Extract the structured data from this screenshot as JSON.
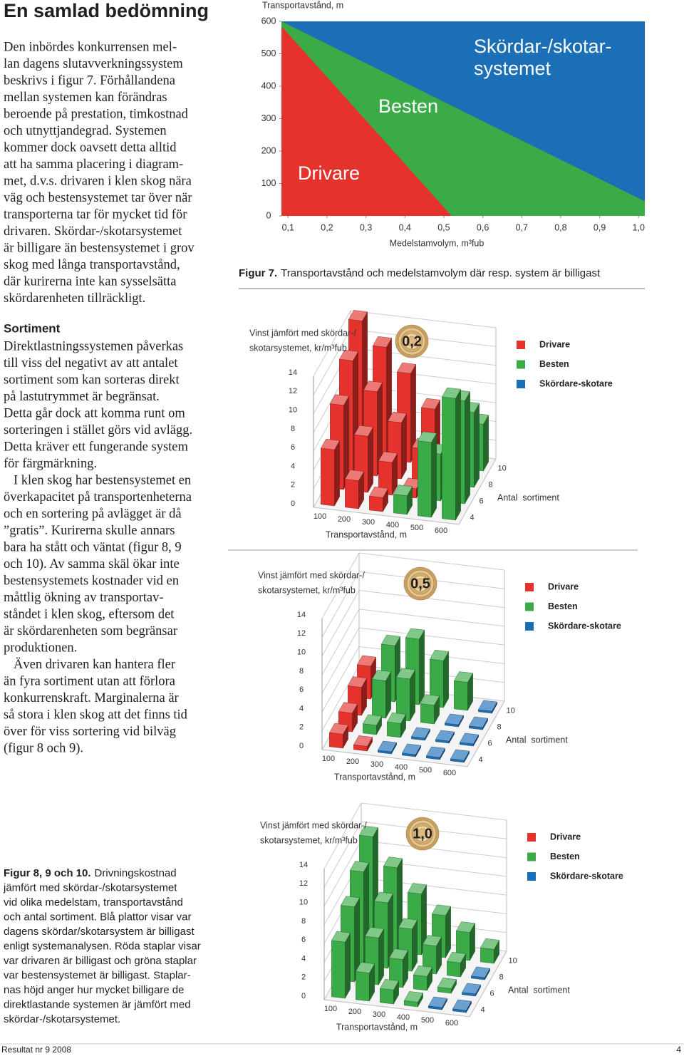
{
  "header": {
    "title": "En samlad bedömning"
  },
  "intro": {
    "lines": [
      "Den inbördes konkurrensen mel-",
      "lan dagens slutavverkningssystem",
      "beskrivs i figur 7. Förhållandena",
      "mellan systemen kan förändras",
      "beroende på prestation, timkostnad",
      "och utnyttjandegrad. Systemen",
      "kommer dock oavsett detta alltid",
      "att ha samma placering i diagram-",
      "met, d.v.s. drivaren i klen skog nära",
      "väg   och bestensystemet tar över när",
      "transporterna tar för mycket tid för",
      "drivaren. Skördar-/skotarsystemet",
      "är billigare än bestensystemet i grov",
      "skog med långa transportavstånd,",
      "där kurirerna inte kan sysselsätta",
      "skördarenheten tillräckligt."
    ]
  },
  "sortiment": {
    "heading": "Sortiment",
    "paragraphs": [
      [
        "Direktlastningssystemen påverkas",
        "till viss del negativt av att antalet",
        "sortiment som kan sorteras direkt",
        "på lastutrymmet är begränsat.",
        "Detta går dock att komma runt om",
        "sorteringen i stället görs vid avlägg.",
        "Detta kräver ett fungerande system",
        "för färgmärkning."
      ],
      [
        "I klen skog har bestensystemet en",
        "överkapacitet på transportenheterna",
        "och en sortering på avlägget är då",
        "”gratis”. Kurirerna skulle annars",
        "bara ha stått och väntat (figur 8, 9",
        "och 10). Av samma skäl ökar inte",
        "bestensystemets kostnader vid en",
        "måttlig ökning av transportav-",
        "ståndet i klen skog, eftersom det",
        "är skördarenheten som begränsar",
        "produktionen."
      ],
      [
        "Även drivaren kan hantera fler",
        "än fyra sortiment utan att förlora",
        "konkurrenskraft. Marginalerna är",
        "så stora i klen skog att det finns tid",
        "över för viss sortering vid bilväg",
        "(figur 8 och 9)."
      ]
    ]
  },
  "figure7_caption": {
    "label": "Figur 7.",
    "text": "Transportavstånd och medelstamvolym där resp. system är billigast"
  },
  "figure8_caption": {
    "label": "Figur 8, 9 och 10.",
    "lines": [
      "Drivningskostnad",
      "jämfört med skördar-/skotarsystemet",
      "vid olika medelstam, transportavstånd",
      "och antal sortiment. Blå plattor visar var",
      "dagens skördar/skotarsystem är billigast",
      "enligt systemanalysen. Röda staplar visar",
      "var drivaren är billigast och gröna staplar",
      "var bestensystemet är billigast. Staplar-",
      "nas höjd anger hur mycket billigare de",
      "direktlastande systemen är jämfört med",
      "skördar-/skotarsystemet."
    ]
  },
  "footer": {
    "publication": "Resultat nr 9 2008",
    "page": "4"
  },
  "chart_data": [
    {
      "type": "area",
      "y_label": "Transportavstånd, m",
      "x_label": "Medelstamvolym, m³fub",
      "xlim": [
        0.083,
        1.016
      ],
      "ylim": [
        0,
        600
      ],
      "xticks": [
        {
          "value": 0.1,
          "label": "0,1"
        },
        {
          "value": 0.2,
          "label": "0,2"
        },
        {
          "value": 0.3,
          "label": "0,3"
        },
        {
          "value": 0.4,
          "label": "0,4"
        },
        {
          "value": 0.5,
          "label": "0,5"
        },
        {
          "value": 0.6,
          "label": "0,6"
        },
        {
          "value": 0.7,
          "label": "0,7"
        },
        {
          "value": 0.8,
          "label": "0,8"
        },
        {
          "value": 0.9,
          "label": "0,9"
        },
        {
          "value": 1.0,
          "label": "1,0"
        }
      ],
      "yticks": [
        0,
        100,
        200,
        300,
        400,
        500,
        600
      ],
      "series": [
        {
          "name": "Drivare",
          "color": "#e5322d",
          "x": [
            0.083,
            0.52
          ],
          "values": [
            585,
            0
          ]
        },
        {
          "name": "Besten",
          "color": "#3aab47",
          "x": [
            0.083,
            1.016
          ],
          "values": [
            600,
            45
          ]
        },
        {
          "name": [
            "Skördar-/skotar-",
            "systemet"
          ],
          "color": "#1b6fb6"
        }
      ]
    },
    {
      "type": "bar3d",
      "y_label": [
        "Vinst jämfört med skördar-/",
        "skotarsystemet, kr/m³fub"
      ],
      "badge": "0,2",
      "x_label": "Transportavstånd, m",
      "x": [
        100,
        200,
        300,
        400,
        500,
        600
      ],
      "depth_label": "Antal  sortiment",
      "depth": [
        4,
        6,
        8,
        10
      ],
      "ylim": [
        0,
        14
      ],
      "yticks": [
        0,
        2,
        4,
        6,
        8,
        10,
        12,
        14
      ],
      "series": [
        {
          "name": "Drivare",
          "color": "#e5322d",
          "values": [
            [
              6,
              3,
              1.5,
              null,
              null,
              null
            ],
            [
              9,
              6,
              3.5,
              1,
              null,
              null
            ],
            [
              12,
              9,
              6,
              3.5,
              null,
              null
            ],
            [
              14.5,
              12,
              9.5,
              6,
              3,
              null
            ]
          ]
        },
        {
          "name": "Besten",
          "color": "#3aab47",
          "values": [
            [
              null,
              null,
              null,
              2,
              8,
              13
            ],
            [
              null,
              null,
              null,
              null,
              5,
              11
            ],
            [
              null,
              null,
              null,
              null,
              2,
              8
            ],
            [
              null,
              null,
              null,
              null,
              null,
              5
            ]
          ]
        },
        {
          "name": "Skördare-skotare",
          "color": "#1b6fb6",
          "values": [
            [
              null,
              null,
              null,
              null,
              null,
              null
            ],
            [
              null,
              null,
              null,
              null,
              null,
              null
            ],
            [
              null,
              null,
              null,
              null,
              null,
              null
            ],
            [
              null,
              null,
              null,
              null,
              null,
              null
            ]
          ]
        }
      ]
    },
    {
      "type": "bar3d",
      "y_label": [
        "Vinst jämfört med skördar-/",
        "skotarsystemet, kr/m³fub"
      ],
      "badge": "0,5",
      "x_label": "Transportavstånd, m",
      "x": [
        100,
        200,
        300,
        400,
        500,
        600
      ],
      "depth_label": "Antal  sortiment",
      "depth": [
        4,
        6,
        8,
        10
      ],
      "ylim": [
        0,
        14
      ],
      "yticks": [
        0,
        2,
        4,
        6,
        8,
        10,
        12,
        14
      ],
      "series": [
        {
          "name": "Drivare",
          "color": "#e5322d",
          "values": [
            [
              1.5,
              0.5,
              null,
              null,
              null,
              null
            ],
            [
              2,
              null,
              null,
              null,
              null,
              null
            ],
            [
              3,
              null,
              null,
              null,
              null,
              null
            ],
            [
              3.5,
              null,
              null,
              null,
              null,
              null
            ]
          ]
        },
        {
          "name": "Besten",
          "color": "#3aab47",
          "values": [
            [
              null,
              null,
              null,
              null,
              null,
              null
            ],
            [
              null,
              1,
              1.5,
              null,
              null,
              null
            ],
            [
              null,
              4,
              4.5,
              2,
              null,
              null
            ],
            [
              null,
              6,
              7,
              5,
              3,
              null
            ]
          ]
        },
        {
          "name": "Skördare-skotare",
          "color": "#1b6fb6",
          "values": [
            [
              null,
              null,
              0,
              0,
              0,
              0
            ],
            [
              null,
              null,
              null,
              0,
              0,
              0
            ],
            [
              null,
              null,
              null,
              null,
              0,
              0
            ],
            [
              null,
              null,
              null,
              null,
              null,
              0
            ]
          ]
        }
      ]
    },
    {
      "type": "bar3d",
      "y_label": [
        "Vinst jämfört med skördar-/",
        "skotarsystemet, kr/m³fub"
      ],
      "badge": "1,0",
      "x_label": "Transportavstånd, m",
      "x": [
        100,
        200,
        300,
        400,
        500,
        600
      ],
      "depth_label": "Antal  sortiment",
      "depth": [
        4,
        6,
        8,
        10
      ],
      "ylim": [
        0,
        14
      ],
      "yticks": [
        0,
        2,
        4,
        6,
        8,
        10,
        12,
        14
      ],
      "series": [
        {
          "name": "Drivare",
          "color": "#e5322d",
          "values": [
            [
              null,
              null,
              null,
              null,
              null,
              null
            ],
            [
              null,
              null,
              null,
              null,
              null,
              null
            ],
            [
              null,
              null,
              null,
              null,
              null,
              null
            ],
            [
              null,
              null,
              null,
              null,
              null,
              null
            ]
          ]
        },
        {
          "name": "Besten",
          "color": "#3aab47",
          "values": [
            [
              6,
              3,
              1.5,
              0.5,
              null,
              null
            ],
            [
              8,
              5,
              3,
              1.5,
              0.5,
              null
            ],
            [
              10,
              7,
              4.5,
              3,
              1.5,
              null
            ],
            [
              12,
              9,
              6.5,
              4.5,
              3,
              1.5
            ]
          ]
        },
        {
          "name": "Skördare-skotare",
          "color": "#1b6fb6",
          "values": [
            [
              null,
              null,
              null,
              null,
              0,
              0
            ],
            [
              null,
              null,
              null,
              null,
              null,
              0
            ],
            [
              null,
              null,
              null,
              null,
              null,
              0
            ],
            [
              null,
              null,
              null,
              null,
              null,
              null
            ]
          ]
        }
      ]
    }
  ]
}
